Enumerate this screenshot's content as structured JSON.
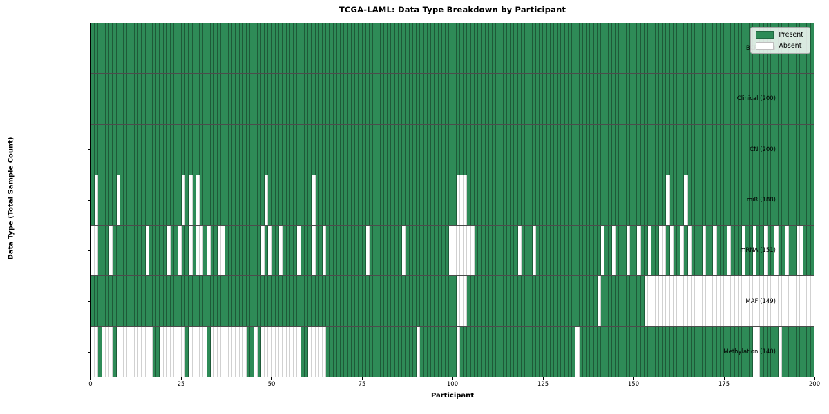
{
  "figure": {
    "background": "#ffffff"
  },
  "chart_data": {
    "type": "heatmap",
    "title": "TCGA-LAML: Data Type Breakdown by Participant",
    "xlabel": "Participant",
    "ylabel": "Data Type (Total Sample Count)",
    "x_ticks": [
      0,
      25,
      50,
      75,
      100,
      125,
      150,
      175,
      200
    ],
    "x_range": [
      0,
      200
    ],
    "n_participants": 200,
    "grid": "cell-edges",
    "colors": {
      "present": "#2e8b57",
      "absent": "#ffffff",
      "cell_edge": "rgba(0,0,0,0.35)",
      "row_divider": "rgba(0,0,0,0.7)"
    },
    "legend": {
      "position": "upper right",
      "items": [
        {
          "label": "Present",
          "color": "#2e8b57"
        },
        {
          "label": "Absent",
          "color": "#ffffff"
        }
      ]
    },
    "rows": [
      {
        "name": "BCR",
        "label": "BCR (200)",
        "present_count": 200,
        "absent_participants": []
      },
      {
        "name": "Clinical",
        "label": "Clinical (200)",
        "present_count": 200,
        "absent_participants": []
      },
      {
        "name": "CN",
        "label": "CN (200)",
        "present_count": 200,
        "absent_participants": []
      },
      {
        "name": "miR",
        "label": "miR (188)",
        "present_count": 188,
        "absent_participants": [
          1,
          7,
          25,
          27,
          29,
          48,
          61,
          101,
          102,
          103,
          159,
          164
        ]
      },
      {
        "name": "mRNA",
        "label": "mRNA (151)",
        "present_count": 151,
        "absent_participants": [
          0,
          1,
          5,
          15,
          21,
          24,
          27,
          29,
          30,
          32,
          35,
          36,
          47,
          49,
          52,
          57,
          61,
          64,
          76,
          86,
          99,
          100,
          101,
          102,
          103,
          104,
          105,
          118,
          122,
          141,
          144,
          148,
          151,
          154,
          157,
          158,
          160,
          163,
          165,
          169,
          172,
          176,
          180,
          183,
          186,
          189,
          192,
          195,
          196
        ]
      },
      {
        "name": "MAF",
        "label": "MAF (149)",
        "present_count": 149,
        "absent_participants": [
          101,
          102,
          103,
          140,
          153,
          154,
          155,
          156,
          157,
          158,
          159,
          160,
          161,
          162,
          163,
          164,
          165,
          166,
          167,
          168,
          169,
          170,
          171,
          172,
          173,
          174,
          175,
          176,
          177,
          178,
          179,
          180,
          181,
          182,
          183,
          184,
          185,
          186,
          187,
          188,
          189,
          190,
          191,
          192,
          193,
          194,
          195,
          196,
          197,
          198,
          199
        ]
      },
      {
        "name": "Methylation",
        "label": "Methylation (140)",
        "present_count": 140,
        "absent_participants": [
          0,
          1,
          3,
          4,
          5,
          7,
          8,
          9,
          10,
          11,
          12,
          13,
          14,
          15,
          16,
          19,
          20,
          21,
          22,
          23,
          24,
          25,
          27,
          28,
          29,
          30,
          31,
          33,
          34,
          35,
          36,
          37,
          38,
          39,
          40,
          41,
          42,
          45,
          47,
          48,
          49,
          50,
          51,
          52,
          53,
          54,
          55,
          56,
          57,
          60,
          61,
          62,
          63,
          64,
          90,
          101,
          134,
          183,
          184,
          190
        ]
      }
    ]
  }
}
